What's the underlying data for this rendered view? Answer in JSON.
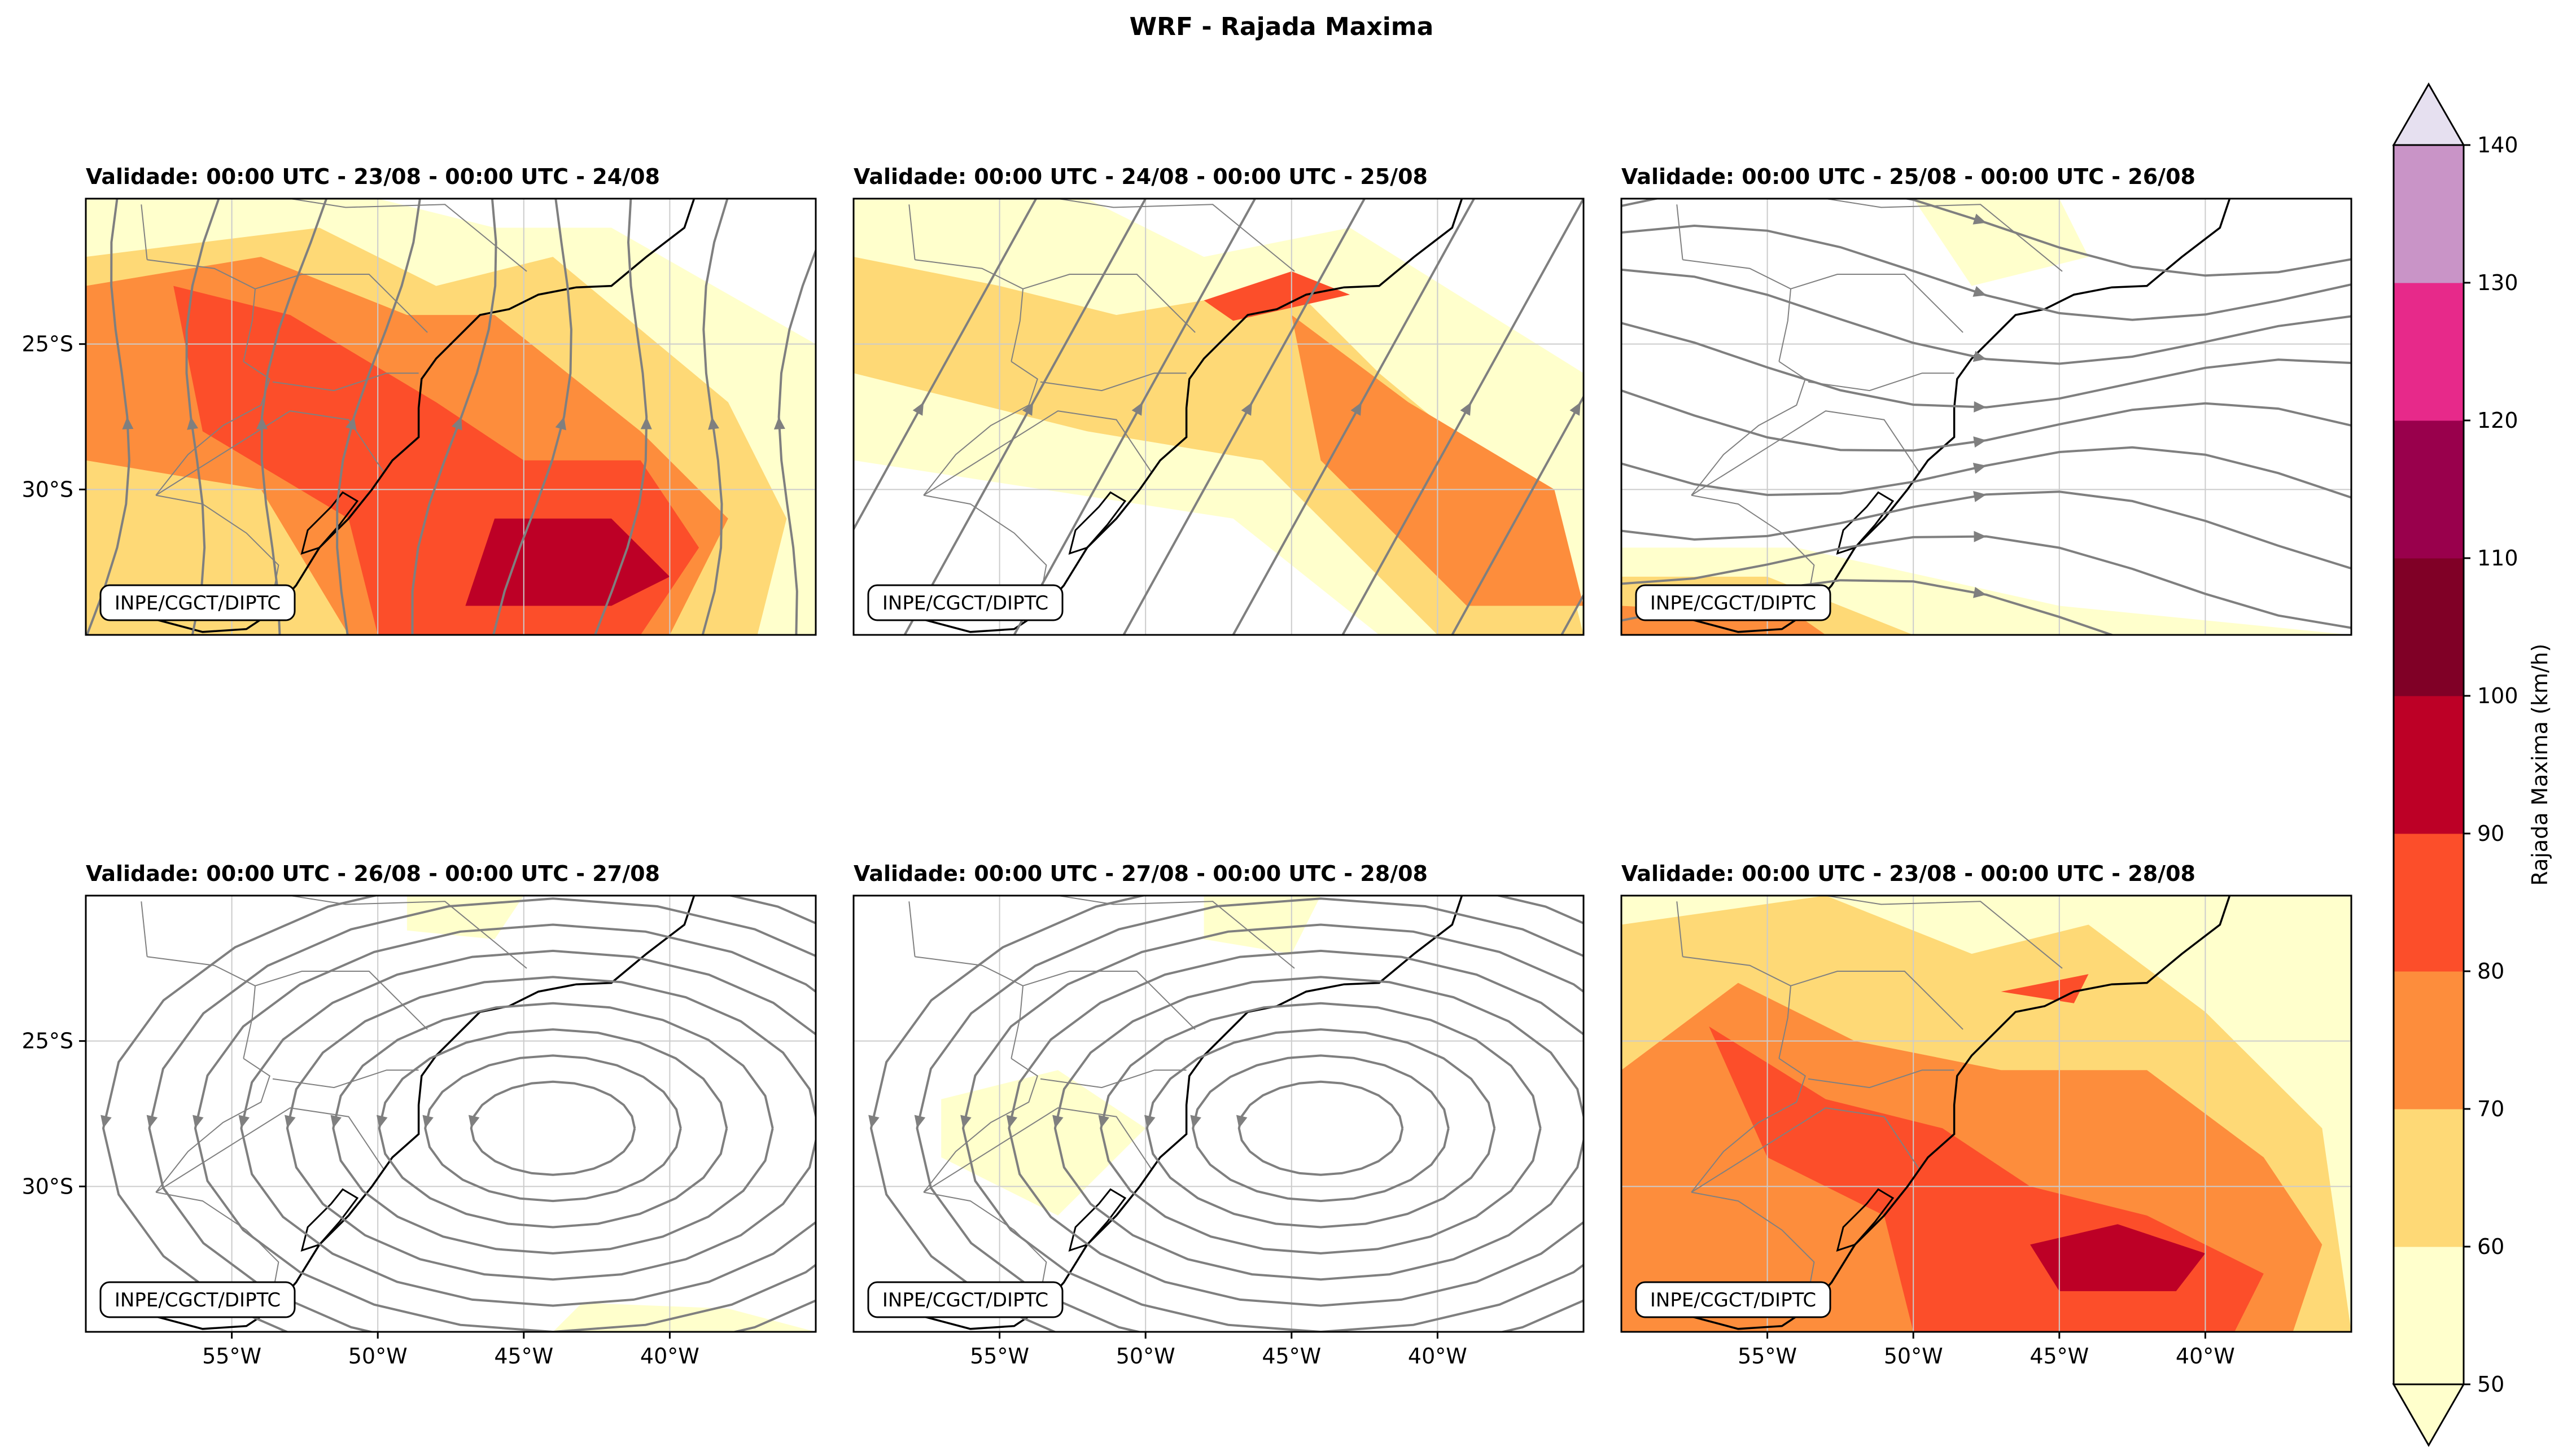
{
  "figure_title": "WRF - Rajada Maxima",
  "colors": {
    "bins": [
      "#ffffcc",
      "#fed976",
      "#fd8d3c",
      "#fc4e2a",
      "#bd0026",
      "#800026",
      "#99004c",
      "#e7298a",
      "#c994c7",
      "#e6e0f0"
    ],
    "streamline": "#7f7f7f",
    "coast": "#000000",
    "border": "#808080",
    "grid": "#cccccc"
  },
  "chart_data": {
    "type": "map-filled-contour",
    "title": "WRF - Rajada Maxima",
    "variable": "Rajada Maxima (km/h)",
    "lon_range": [
      -60,
      -35
    ],
    "lat_range": [
      -35,
      -20
    ],
    "x_ticks": [
      -55,
      -50,
      -45,
      -40
    ],
    "x_tick_labels": [
      "55°W",
      "50°W",
      "45°W",
      "40°W"
    ],
    "y_ticks": [
      -25,
      -30
    ],
    "y_tick_labels": [
      "25°S",
      "30°S"
    ],
    "colorbar": {
      "label": "Rajada Maxima (km/h)",
      "levels": [
        50,
        60,
        70,
        80,
        90,
        100,
        110,
        120,
        130,
        140
      ],
      "extend": "both"
    },
    "panels": [
      {
        "title": "Validade: 00:00 UTC - 23/08 - 00:00 UTC - 24/08",
        "credit": "INPE/CGCT/DIPTC",
        "flow": "southerly",
        "gust_regions": [
          {
            "value": 55,
            "points": [
              [
                -60,
                -20
              ],
              [
                -50,
                -20
              ],
              [
                -46,
                -21
              ],
              [
                -42,
                -21
              ],
              [
                -35,
                -25
              ],
              [
                -35,
                -35
              ],
              [
                -60,
                -35
              ]
            ]
          },
          {
            "value": 65,
            "points": [
              [
                -60,
                -22
              ],
              [
                -52,
                -21
              ],
              [
                -48,
                -23
              ],
              [
                -44,
                -22
              ],
              [
                -38,
                -27
              ],
              [
                -36,
                -31
              ],
              [
                -37,
                -35
              ],
              [
                -60,
                -35
              ]
            ]
          },
          {
            "value": 75,
            "points": [
              [
                -60,
                -23
              ],
              [
                -54,
                -22
              ],
              [
                -49,
                -24
              ],
              [
                -46,
                -24
              ],
              [
                -41,
                -28
              ],
              [
                -38,
                -31
              ],
              [
                -40,
                -35
              ],
              [
                -51,
                -35
              ],
              [
                -54,
                -30
              ],
              [
                -60,
                -29
              ]
            ]
          },
          {
            "value": 85,
            "points": [
              [
                -57,
                -23
              ],
              [
                -53,
                -24
              ],
              [
                -48,
                -27
              ],
              [
                -45,
                -29
              ],
              [
                -41,
                -29
              ],
              [
                -39,
                -32
              ],
              [
                -41,
                -35
              ],
              [
                -50,
                -35
              ],
              [
                -51,
                -31
              ],
              [
                -56,
                -28
              ]
            ]
          },
          {
            "value": 95,
            "points": [
              [
                -46,
                -31
              ],
              [
                -42,
                -31
              ],
              [
                -40,
                -33
              ],
              [
                -42,
                -34
              ],
              [
                -47,
                -34
              ]
            ]
          }
        ]
      },
      {
        "title": "Validade: 00:00 UTC - 24/08 - 00:00 UTC - 25/08",
        "credit": "INPE/CGCT/DIPTC",
        "flow": "southwesterly",
        "gust_regions": [
          {
            "value": 55,
            "points": [
              [
                -60,
                -20
              ],
              [
                -52,
                -20
              ],
              [
                -48,
                -22
              ],
              [
                -43,
                -21
              ],
              [
                -35,
                -26
              ],
              [
                -35,
                -35
              ],
              [
                -42,
                -35
              ],
              [
                -47,
                -31
              ],
              [
                -60,
                -29
              ]
            ]
          },
          {
            "value": 65,
            "points": [
              [
                -60,
                -22
              ],
              [
                -55,
                -23
              ],
              [
                -51,
                -24
              ],
              [
                -45,
                -23
              ],
              [
                -42,
                -26
              ],
              [
                -36,
                -31
              ],
              [
                -35,
                -35
              ],
              [
                -40,
                -35
              ],
              [
                -46,
                -29
              ],
              [
                -52,
                -28
              ],
              [
                -60,
                -26
              ]
            ]
          },
          {
            "value": 75,
            "points": [
              [
                -45,
                -24
              ],
              [
                -41,
                -27
              ],
              [
                -36,
                -30
              ],
              [
                -35,
                -34
              ],
              [
                -39,
                -34
              ],
              [
                -44,
                -29
              ]
            ]
          },
          {
            "value": 85,
            "points": [
              [
                -48,
                -23.5
              ],
              [
                -45,
                -22.5
              ],
              [
                -43,
                -23.3
              ],
              [
                -47,
                -24.2
              ]
            ]
          }
        ]
      },
      {
        "title": "Validade: 00:00 UTC - 25/08 - 00:00 UTC - 26/08",
        "credit": "INPE/CGCT/DIPTC",
        "flow": "westerly",
        "gust_regions": [
          {
            "value": 55,
            "points": [
              [
                -60,
                -32
              ],
              [
                -54,
                -32
              ],
              [
                -45,
                -34
              ],
              [
                -35,
                -35
              ],
              [
                -60,
                -35
              ]
            ]
          },
          {
            "value": 55,
            "points": [
              [
                -50,
                -20
              ],
              [
                -45,
                -20
              ],
              [
                -44,
                -22
              ],
              [
                -48,
                -23
              ]
            ]
          },
          {
            "value": 65,
            "points": [
              [
                -60,
                -33
              ],
              [
                -55,
                -33
              ],
              [
                -50,
                -35
              ],
              [
                -60,
                -35
              ]
            ]
          },
          {
            "value": 75,
            "points": [
              [
                -60,
                -34
              ],
              [
                -54,
                -34.3
              ],
              [
                -53,
                -35
              ],
              [
                -60,
                -35
              ]
            ]
          }
        ]
      },
      {
        "title": "Validade: 00:00 UTC - 26/08 - 00:00 UTC - 27/08",
        "credit": "INPE/CGCT/DIPTC",
        "flow": "anticyclonic",
        "gust_regions": [
          {
            "value": 55,
            "points": [
              [
                -43,
                -34
              ],
              [
                -38,
                -34.2
              ],
              [
                -35,
                -35
              ],
              [
                -44,
                -35
              ]
            ]
          },
          {
            "value": 55,
            "points": [
              [
                -49,
                -20
              ],
              [
                -45,
                -20
              ],
              [
                -46,
                -21.5
              ],
              [
                -49,
                -21.2
              ]
            ]
          }
        ]
      },
      {
        "title": "Validade: 00:00 UTC - 27/08 - 00:00 UTC - 28/08",
        "credit": "INPE/CGCT/DIPTC",
        "flow": "anticyclonic",
        "gust_regions": [
          {
            "value": 55,
            "points": [
              [
                -57,
                -27
              ],
              [
                -53,
                -26
              ],
              [
                -50,
                -28
              ],
              [
                -53,
                -31
              ],
              [
                -57,
                -29
              ]
            ]
          },
          {
            "value": 55,
            "points": [
              [
                -48,
                -20
              ],
              [
                -44,
                -20
              ],
              [
                -45,
                -22
              ],
              [
                -48,
                -21.5
              ]
            ]
          }
        ]
      },
      {
        "title": "Validade: 00:00 UTC - 23/08 - 00:00 UTC - 28/08",
        "credit": "INPE/CGCT/DIPTC",
        "flow": "none",
        "gust_regions": [
          {
            "value": 55,
            "points": [
              [
                -60,
                -20
              ],
              [
                -35,
                -20
              ],
              [
                -35,
                -35
              ],
              [
                -60,
                -35
              ]
            ]
          },
          {
            "value": 65,
            "points": [
              [
                -60,
                -21
              ],
              [
                -53,
                -20
              ],
              [
                -48,
                -22
              ],
              [
                -44,
                -21
              ],
              [
                -40,
                -24
              ],
              [
                -36,
                -28
              ],
              [
                -35,
                -35
              ],
              [
                -60,
                -35
              ]
            ]
          },
          {
            "value": 75,
            "points": [
              [
                -60,
                -26
              ],
              [
                -56,
                -23
              ],
              [
                -52,
                -25
              ],
              [
                -47,
                -26
              ],
              [
                -42,
                -26
              ],
              [
                -38,
                -29
              ],
              [
                -36,
                -32
              ],
              [
                -37,
                -35
              ],
              [
                -60,
                -35
              ]
            ]
          },
          {
            "value": 85,
            "points": [
              [
                -57,
                -24.5
              ],
              [
                -53,
                -27
              ],
              [
                -49,
                -28
              ],
              [
                -46,
                -30
              ],
              [
                -42,
                -31
              ],
              [
                -38,
                -33
              ],
              [
                -39,
                -35
              ],
              [
                -50,
                -35
              ],
              [
                -51,
                -31
              ],
              [
                -55,
                -29
              ]
            ]
          },
          {
            "value": 95,
            "points": [
              [
                -46,
                -32
              ],
              [
                -43,
                -31.3
              ],
              [
                -40,
                -32.3
              ],
              [
                -41,
                -33.6
              ],
              [
                -45,
                -33.6
              ]
            ]
          },
          {
            "value": 85,
            "points": [
              [
                -47,
                -23.3
              ],
              [
                -44,
                -22.7
              ],
              [
                -44.5,
                -23.7
              ]
            ]
          }
        ]
      }
    ]
  }
}
